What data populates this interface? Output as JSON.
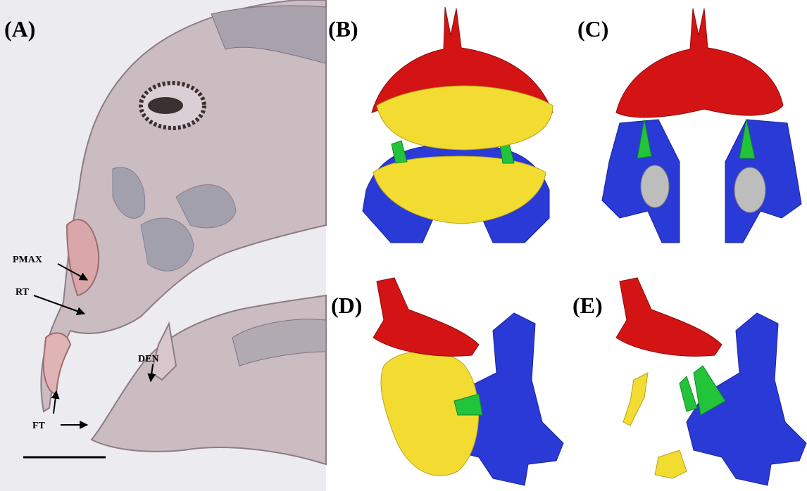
{
  "panels": [
    {
      "label": "(A)"
    },
    {
      "label": "(B)"
    },
    {
      "label": "(C)"
    },
    {
      "label": "(D)"
    },
    {
      "label": "(E)"
    }
  ],
  "annotations": [
    {
      "label": "PMAX"
    },
    {
      "label": "RT"
    },
    {
      "label": "DEN"
    },
    {
      "label": "FT"
    }
  ]
}
